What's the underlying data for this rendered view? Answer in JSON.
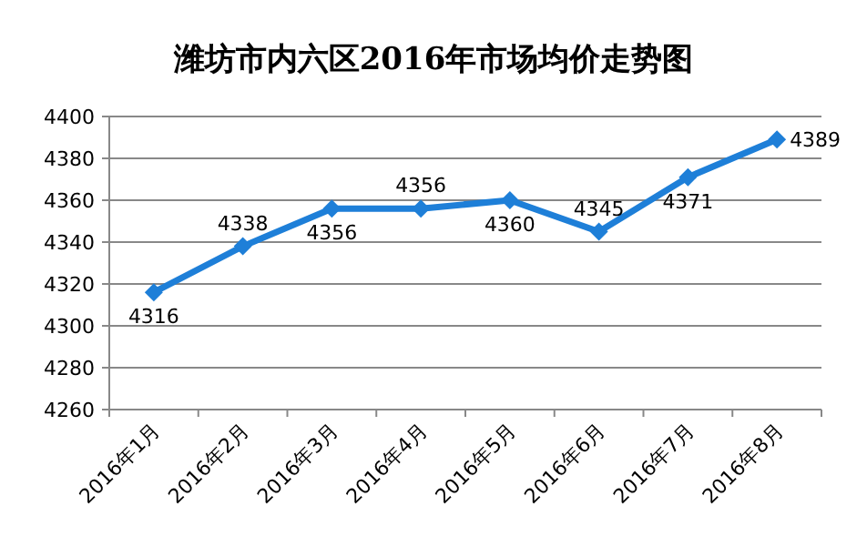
{
  "chart_data": {
    "type": "line",
    "title": "潍坊市内六区2016年市场均价走势图",
    "categories": [
      "2016年1月",
      "2016年2月",
      "2016年3月",
      "2016年4月",
      "2016年5月",
      "2016年6月",
      "2016年7月",
      "2016年8月"
    ],
    "series": [
      {
        "color": "#1e7fd8",
        "values": [
          4316,
          4338,
          4356,
          4356,
          4360,
          4345,
          4371,
          4389
        ]
      }
    ],
    "ylim": [
      4260,
      4400
    ],
    "yticks": [
      4260,
      4280,
      4300,
      4320,
      4340,
      4360,
      4380,
      4400
    ],
    "grid": "y",
    "marker": "diamond",
    "line_style": "solid",
    "data_labels": true
  }
}
